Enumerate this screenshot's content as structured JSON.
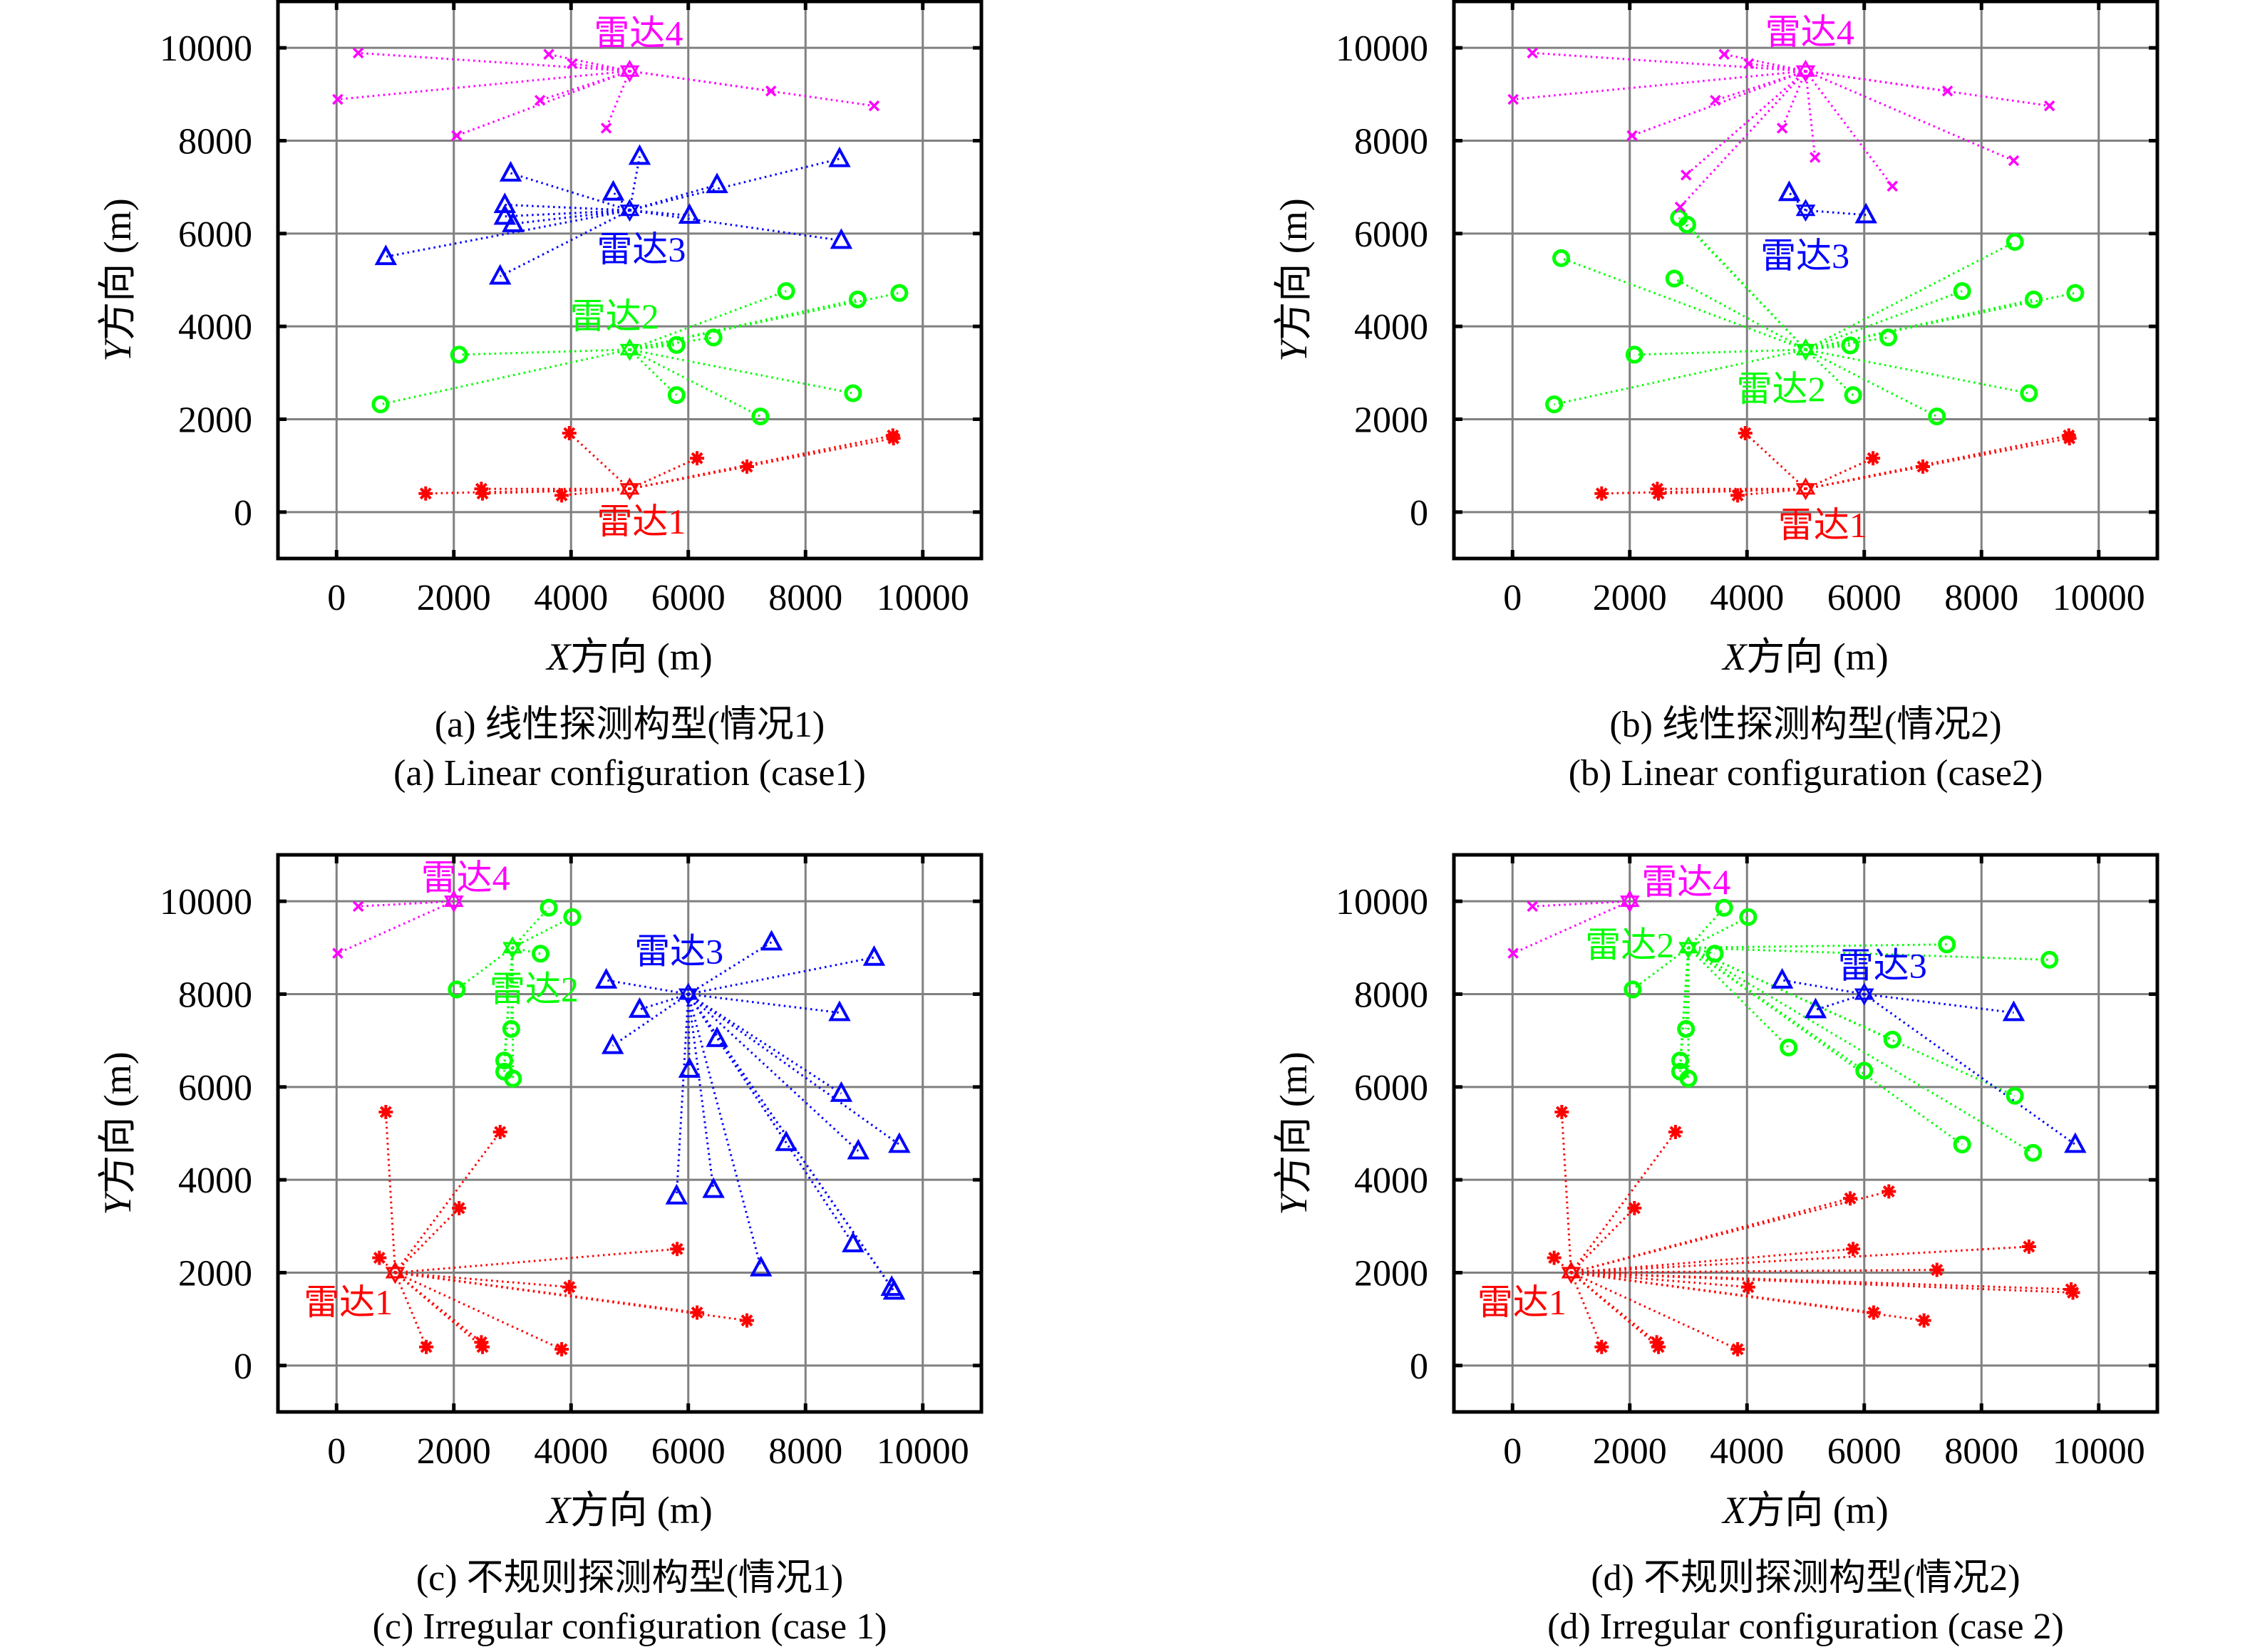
{
  "chart_data": [
    {
      "type": "scatter",
      "panel": "a",
      "caption_cn": "(a) 线性探测构型(情况1)",
      "caption_en": "(a) Linear configuration (case1)",
      "xlabel": "X方向 (m)",
      "xlabel_symbol": "X",
      "xlabel_text": "方向 (m)",
      "ylabel": "Y方向 (m)",
      "ylabel_symbol": "Y",
      "ylabel_text": "方向 (m)",
      "xlim": [
        -1000,
        11000
      ],
      "ylim": [
        -1000,
        11000
      ],
      "xticks": [
        0,
        2000,
        4000,
        6000,
        8000,
        10000
      ],
      "yticks": [
        0,
        2000,
        4000,
        6000,
        8000,
        10000
      ],
      "grid": true,
      "radars": [
        {
          "name": "雷达1",
          "color": "#FF0000",
          "target_marker": "asterisk",
          "position": [
            5000,
            500
          ],
          "label_position": [
            5200,
            -200
          ],
          "targets": [
            [
              3970,
              1700
            ],
            [
              9490,
              1650
            ],
            [
              9500,
              1590
            ],
            [
              6150,
              1160
            ],
            [
              7000,
              980
            ],
            [
              1520,
              400
            ],
            [
              2470,
              500
            ],
            [
              2490,
              400
            ],
            [
              3840,
              360
            ]
          ]
        },
        {
          "name": "雷达2",
          "color": "#00FF00",
          "target_marker": "circle",
          "position": [
            5000,
            3500
          ],
          "label_position": [
            4740,
            4220
          ],
          "targets": [
            [
              7670,
              4760
            ],
            [
              8890,
              4580
            ],
            [
              9600,
              4720
            ],
            [
              2090,
              3390
            ],
            [
              5800,
              3600
            ],
            [
              6430,
              3760
            ],
            [
              750,
              2320
            ],
            [
              5800,
              2520
            ],
            [
              8810,
              2560
            ],
            [
              7230,
              2060
            ]
          ]
        },
        {
          "name": "雷达3",
          "color": "#0000FF",
          "target_marker": "triangle",
          "position": [
            5000,
            6500
          ],
          "label_position": [
            5200,
            5660
          ],
          "targets": [
            [
              5170,
              7660
            ],
            [
              8580,
              7610
            ],
            [
              2970,
              7300
            ],
            [
              4720,
              6890
            ],
            [
              6490,
              7050
            ],
            [
              2870,
              6620
            ],
            [
              2870,
              6370
            ],
            [
              3010,
              6210
            ],
            [
              6020,
              6390
            ],
            [
              8610,
              5850
            ],
            [
              840,
              5500
            ],
            [
              2790,
              5080
            ]
          ]
        },
        {
          "name": "雷达4",
          "color": "#FF00FF",
          "target_marker": "x",
          "position": [
            5000,
            9500
          ],
          "label_position": [
            5150,
            10320
          ],
          "targets": [
            [
              370,
              9890
            ],
            [
              3620,
              9860
            ],
            [
              4020,
              9660
            ],
            [
              20,
              8890
            ],
            [
              3470,
              8870
            ],
            [
              2050,
              8110
            ],
            [
              4600,
              8270
            ],
            [
              7410,
              9070
            ],
            [
              9170,
              8750
            ]
          ]
        }
      ]
    },
    {
      "type": "scatter",
      "panel": "b",
      "caption_cn": "(b) 线性探测构型(情况2)",
      "caption_en": "(b) Linear configuration (case2)",
      "xlabel": "X方向 (m)",
      "xlabel_symbol": "X",
      "xlabel_text": "方向 (m)",
      "ylabel": "Y方向 (m)",
      "ylabel_symbol": "Y",
      "ylabel_text": "方向 (m)",
      "xlim": [
        -1000,
        11000
      ],
      "ylim": [
        -1000,
        11000
      ],
      "xticks": [
        0,
        2000,
        4000,
        6000,
        8000,
        10000
      ],
      "yticks": [
        0,
        2000,
        4000,
        6000,
        8000,
        10000
      ],
      "grid": true,
      "radars": [
        {
          "name": "雷达1",
          "color": "#FF0000",
          "target_marker": "asterisk",
          "position": [
            5000,
            500
          ],
          "label_position": [
            5290,
            -280
          ],
          "targets": [
            [
              3970,
              1700
            ],
            [
              9490,
              1650
            ],
            [
              9500,
              1590
            ],
            [
              6150,
              1160
            ],
            [
              7000,
              980
            ],
            [
              1520,
              400
            ],
            [
              2470,
              500
            ],
            [
              2490,
              400
            ],
            [
              3840,
              360
            ]
          ]
        },
        {
          "name": "雷达2",
          "color": "#00FF00",
          "target_marker": "circle",
          "position": [
            5000,
            3500
          ],
          "label_position": [
            4580,
            2650
          ],
          "targets": [
            [
              2840,
              6340
            ],
            [
              2980,
              6190
            ],
            [
              830,
              5470
            ],
            [
              2760,
              5030
            ],
            [
              8570,
              5820
            ],
            [
              7670,
              4760
            ],
            [
              8890,
              4580
            ],
            [
              9600,
              4720
            ],
            [
              2080,
              3390
            ],
            [
              5760,
              3590
            ],
            [
              6410,
              3760
            ],
            [
              710,
              2320
            ],
            [
              5810,
              2520
            ],
            [
              8810,
              2560
            ],
            [
              7240,
              2060
            ]
          ]
        },
        {
          "name": "雷达3",
          "color": "#0000FF",
          "target_marker": "triangle",
          "position": [
            5000,
            6500
          ],
          "label_position": [
            4990,
            5520
          ],
          "targets": [
            [
              4720,
              6880
            ],
            [
              6030,
              6400
            ]
          ]
        },
        {
          "name": "雷达4",
          "color": "#FF00FF",
          "target_marker": "x",
          "position": [
            5000,
            9500
          ],
          "label_position": [
            5070,
            10340
          ],
          "targets": [
            [
              340,
              9890
            ],
            [
              3610,
              9860
            ],
            [
              4030,
              9660
            ],
            [
              10,
              8890
            ],
            [
              3460,
              8870
            ],
            [
              2040,
              8110
            ],
            [
              4600,
              8270
            ],
            [
              7420,
              9070
            ],
            [
              9160,
              8750
            ],
            [
              8550,
              7570
            ],
            [
              5160,
              7640
            ],
            [
              2960,
              7260
            ],
            [
              6480,
              7020
            ],
            [
              2860,
              6570
            ]
          ]
        }
      ]
    },
    {
      "type": "scatter",
      "panel": "c",
      "caption_cn": "(c) 不规则探测构型(情况1)",
      "caption_en": "(c) Irregular configuration (case 1)",
      "xlabel": "X方向 (m)",
      "xlabel_symbol": "X",
      "xlabel_text": "方向 (m)",
      "ylabel": "Y方向 (m)",
      "ylabel_symbol": "Y",
      "ylabel_text": "方向 (m)",
      "xlim": [
        -1000,
        11000
      ],
      "ylim": [
        -1000,
        11000
      ],
      "xticks": [
        0,
        2000,
        4000,
        6000,
        8000,
        10000
      ],
      "yticks": [
        0,
        2000,
        4000,
        6000,
        8000,
        10000
      ],
      "grid": true,
      "radars": [
        {
          "name": "雷达1",
          "color": "#FF0000",
          "target_marker": "asterisk",
          "position": [
            1000,
            2000
          ],
          "label_position": [
            200,
            1360
          ],
          "targets": [
            [
              840,
              5460
            ],
            [
              2790,
              5030
            ],
            [
              2090,
              3390
            ],
            [
              730,
              2320
            ],
            [
              5810,
              2510
            ],
            [
              3970,
              1690
            ],
            [
              6150,
              1140
            ],
            [
              7000,
              970
            ],
            [
              1530,
              400
            ],
            [
              2470,
              500
            ],
            [
              2490,
              400
            ],
            [
              3840,
              350
            ]
          ]
        },
        {
          "name": "雷达2",
          "color": "#00FF00",
          "target_marker": "circle",
          "position": [
            3000,
            9000
          ],
          "label_position": [
            3370,
            8110
          ],
          "targets": [
            [
              3620,
              9860
            ],
            [
              4020,
              9660
            ],
            [
              3480,
              8870
            ],
            [
              2050,
              8100
            ],
            [
              2980,
              7250
            ],
            [
              2860,
              6570
            ],
            [
              2860,
              6330
            ],
            [
              3010,
              6180
            ]
          ]
        },
        {
          "name": "雷达3",
          "color": "#0000FF",
          "target_marker": "triangle",
          "position": [
            6000,
            8000
          ],
          "label_position": [
            5840,
            8920
          ],
          "targets": [
            [
              7420,
              9120
            ],
            [
              9170,
              8790
            ],
            [
              4600,
              8300
            ],
            [
              5170,
              7670
            ],
            [
              8580,
              7600
            ],
            [
              4710,
              6890
            ],
            [
              6490,
              7040
            ],
            [
              6020,
              6380
            ],
            [
              8610,
              5860
            ],
            [
              7670,
              4800
            ],
            [
              8900,
              4620
            ],
            [
              9600,
              4760
            ],
            [
              5800,
              3650
            ],
            [
              6430,
              3790
            ],
            [
              8810,
              2620
            ],
            [
              7240,
              2100
            ],
            [
              9470,
              1680
            ],
            [
              9510,
              1600
            ]
          ]
        },
        {
          "name": "雷达4",
          "color": "#FF00FF",
          "target_marker": "x",
          "position": [
            2000,
            10000
          ],
          "label_position": [
            2200,
            10510
          ],
          "targets": [
            [
              370,
              9890
            ],
            [
              20,
              8880
            ]
          ]
        }
      ]
    },
    {
      "type": "scatter",
      "panel": "d",
      "caption_cn": "(d) 不规则探测构型(情况2)",
      "caption_en": "(d) Irregular configuration (case 2)",
      "xlabel": "X方向 (m)",
      "xlabel_symbol": "X",
      "xlabel_text": "方向 (m)",
      "ylabel": "Y方向 (m)",
      "ylabel_symbol": "Y",
      "ylabel_text": "方向 (m)",
      "xlim": [
        -1000,
        11000
      ],
      "ylim": [
        -1000,
        11000
      ],
      "xticks": [
        0,
        2000,
        4000,
        6000,
        8000,
        10000
      ],
      "yticks": [
        0,
        2000,
        4000,
        6000,
        8000,
        10000
      ],
      "grid": true,
      "radars": [
        {
          "name": "雷达1",
          "color": "#FF0000",
          "target_marker": "asterisk",
          "position": [
            1000,
            2000
          ],
          "label_position": [
            160,
            1360
          ],
          "targets": [
            [
              840,
              5460
            ],
            [
              2780,
              5030
            ],
            [
              2080,
              3390
            ],
            [
              5760,
              3600
            ],
            [
              6420,
              3750
            ],
            [
              710,
              2320
            ],
            [
              5810,
              2510
            ],
            [
              8810,
              2560
            ],
            [
              7240,
              2060
            ],
            [
              4020,
              1690
            ],
            [
              9530,
              1640
            ],
            [
              9560,
              1570
            ],
            [
              6160,
              1140
            ],
            [
              7020,
              970
            ],
            [
              1520,
              400
            ],
            [
              2460,
              500
            ],
            [
              2490,
              400
            ],
            [
              3840,
              350
            ]
          ]
        },
        {
          "name": "雷达2",
          "color": "#00FF00",
          "target_marker": "circle",
          "position": [
            3000,
            9000
          ],
          "label_position": [
            2000,
            9060
          ],
          "targets": [
            [
              3610,
              9860
            ],
            [
              4020,
              9660
            ],
            [
              3450,
              8870
            ],
            [
              7410,
              9070
            ],
            [
              9160,
              8740
            ],
            [
              2050,
              8100
            ],
            [
              2960,
              7250
            ],
            [
              4710,
              6850
            ],
            [
              6480,
              7020
            ],
            [
              2860,
              6570
            ],
            [
              2860,
              6330
            ],
            [
              3000,
              6180
            ],
            [
              6000,
              6350
            ],
            [
              8570,
              5810
            ],
            [
              7670,
              4760
            ],
            [
              8880,
              4580
            ]
          ]
        },
        {
          "name": "雷达3",
          "color": "#0000FF",
          "target_marker": "triangle",
          "position": [
            6000,
            8000
          ],
          "label_position": [
            6310,
            8610
          ],
          "targets": [
            [
              4600,
              8300
            ],
            [
              5170,
              7660
            ],
            [
              8550,
              7600
            ],
            [
              9600,
              4760
            ]
          ]
        },
        {
          "name": "雷达4",
          "color": "#FF00FF",
          "target_marker": "x",
          "position": [
            2000,
            10000
          ],
          "label_position": [
            2960,
            10420
          ],
          "targets": [
            [
              340,
              9890
            ],
            [
              10,
              8880
            ]
          ]
        }
      ]
    }
  ]
}
